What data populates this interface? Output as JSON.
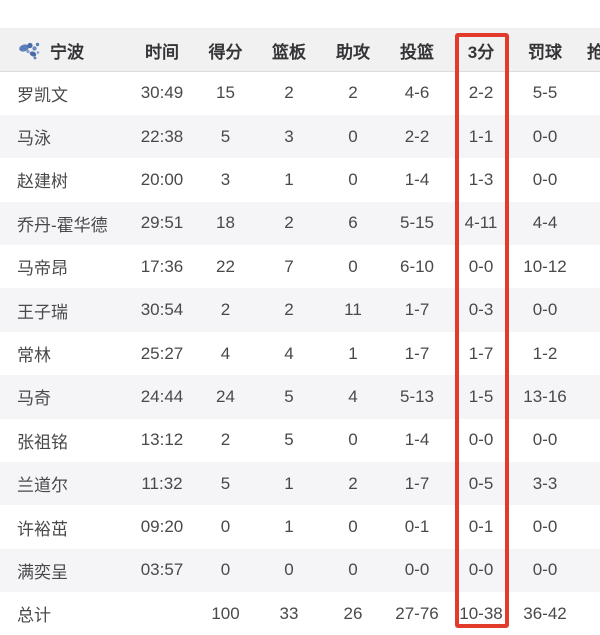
{
  "header": {
    "team": "宁波",
    "columns": [
      "时间",
      "得分",
      "篮板",
      "助攻",
      "投篮",
      "3分",
      "罚球",
      "抢"
    ]
  },
  "annotation": {
    "type": "highlight-box",
    "highlighted_column": "3分",
    "color": "#e23a2b"
  },
  "colors": {
    "accent_red": "#e23a2b",
    "logo_blue": "#5b7fb8",
    "header_bg": "#f1f1f2",
    "alt_row_bg": "#f5f5f7",
    "text": "#49494c"
  },
  "table": {
    "rows": [
      {
        "name": "罗凯文",
        "time": "30:49",
        "pts": "15",
        "reb": "2",
        "ast": "2",
        "fg": "4-6",
        "tp": "2-2",
        "ft": "5-5",
        "extra": ""
      },
      {
        "name": "马泳",
        "time": "22:38",
        "pts": "5",
        "reb": "3",
        "ast": "0",
        "fg": "2-2",
        "tp": "1-1",
        "ft": "0-0",
        "extra": ""
      },
      {
        "name": "赵建树",
        "time": "20:00",
        "pts": "3",
        "reb": "1",
        "ast": "0",
        "fg": "1-4",
        "tp": "1-3",
        "ft": "0-0",
        "extra": ""
      },
      {
        "name": "乔丹-霍华德",
        "time": "29:51",
        "pts": "18",
        "reb": "2",
        "ast": "6",
        "fg": "5-15",
        "tp": "4-11",
        "ft": "4-4",
        "extra": ""
      },
      {
        "name": "马帝昂",
        "time": "17:36",
        "pts": "22",
        "reb": "7",
        "ast": "0",
        "fg": "6-10",
        "tp": "0-0",
        "ft": "10-12",
        "extra": ""
      },
      {
        "name": "王子瑞",
        "time": "30:54",
        "pts": "2",
        "reb": "2",
        "ast": "11",
        "fg": "1-7",
        "tp": "0-3",
        "ft": "0-0",
        "extra": ""
      },
      {
        "name": "常林",
        "time": "25:27",
        "pts": "4",
        "reb": "4",
        "ast": "1",
        "fg": "1-7",
        "tp": "1-7",
        "ft": "1-2",
        "extra": ""
      },
      {
        "name": "马奇",
        "time": "24:44",
        "pts": "24",
        "reb": "5",
        "ast": "4",
        "fg": "5-13",
        "tp": "1-5",
        "ft": "13-16",
        "extra": ""
      },
      {
        "name": "张祖铭",
        "time": "13:12",
        "pts": "2",
        "reb": "5",
        "ast": "0",
        "fg": "1-4",
        "tp": "0-0",
        "ft": "0-0",
        "extra": ""
      },
      {
        "name": "兰道尔",
        "time": "11:32",
        "pts": "5",
        "reb": "1",
        "ast": "2",
        "fg": "1-7",
        "tp": "0-5",
        "ft": "3-3",
        "extra": ""
      },
      {
        "name": "许裕茁",
        "time": "09:20",
        "pts": "0",
        "reb": "1",
        "ast": "0",
        "fg": "0-1",
        "tp": "0-1",
        "ft": "0-0",
        "extra": ""
      },
      {
        "name": "满奕呈",
        "time": "03:57",
        "pts": "0",
        "reb": "0",
        "ast": "0",
        "fg": "0-0",
        "tp": "0-0",
        "ft": "0-0",
        "extra": ""
      }
    ],
    "total": {
      "name": "总计",
      "time": "",
      "pts": "100",
      "reb": "33",
      "ast": "26",
      "fg": "27-76",
      "tp": "10-38",
      "ft": "36-42",
      "extra": ""
    }
  }
}
